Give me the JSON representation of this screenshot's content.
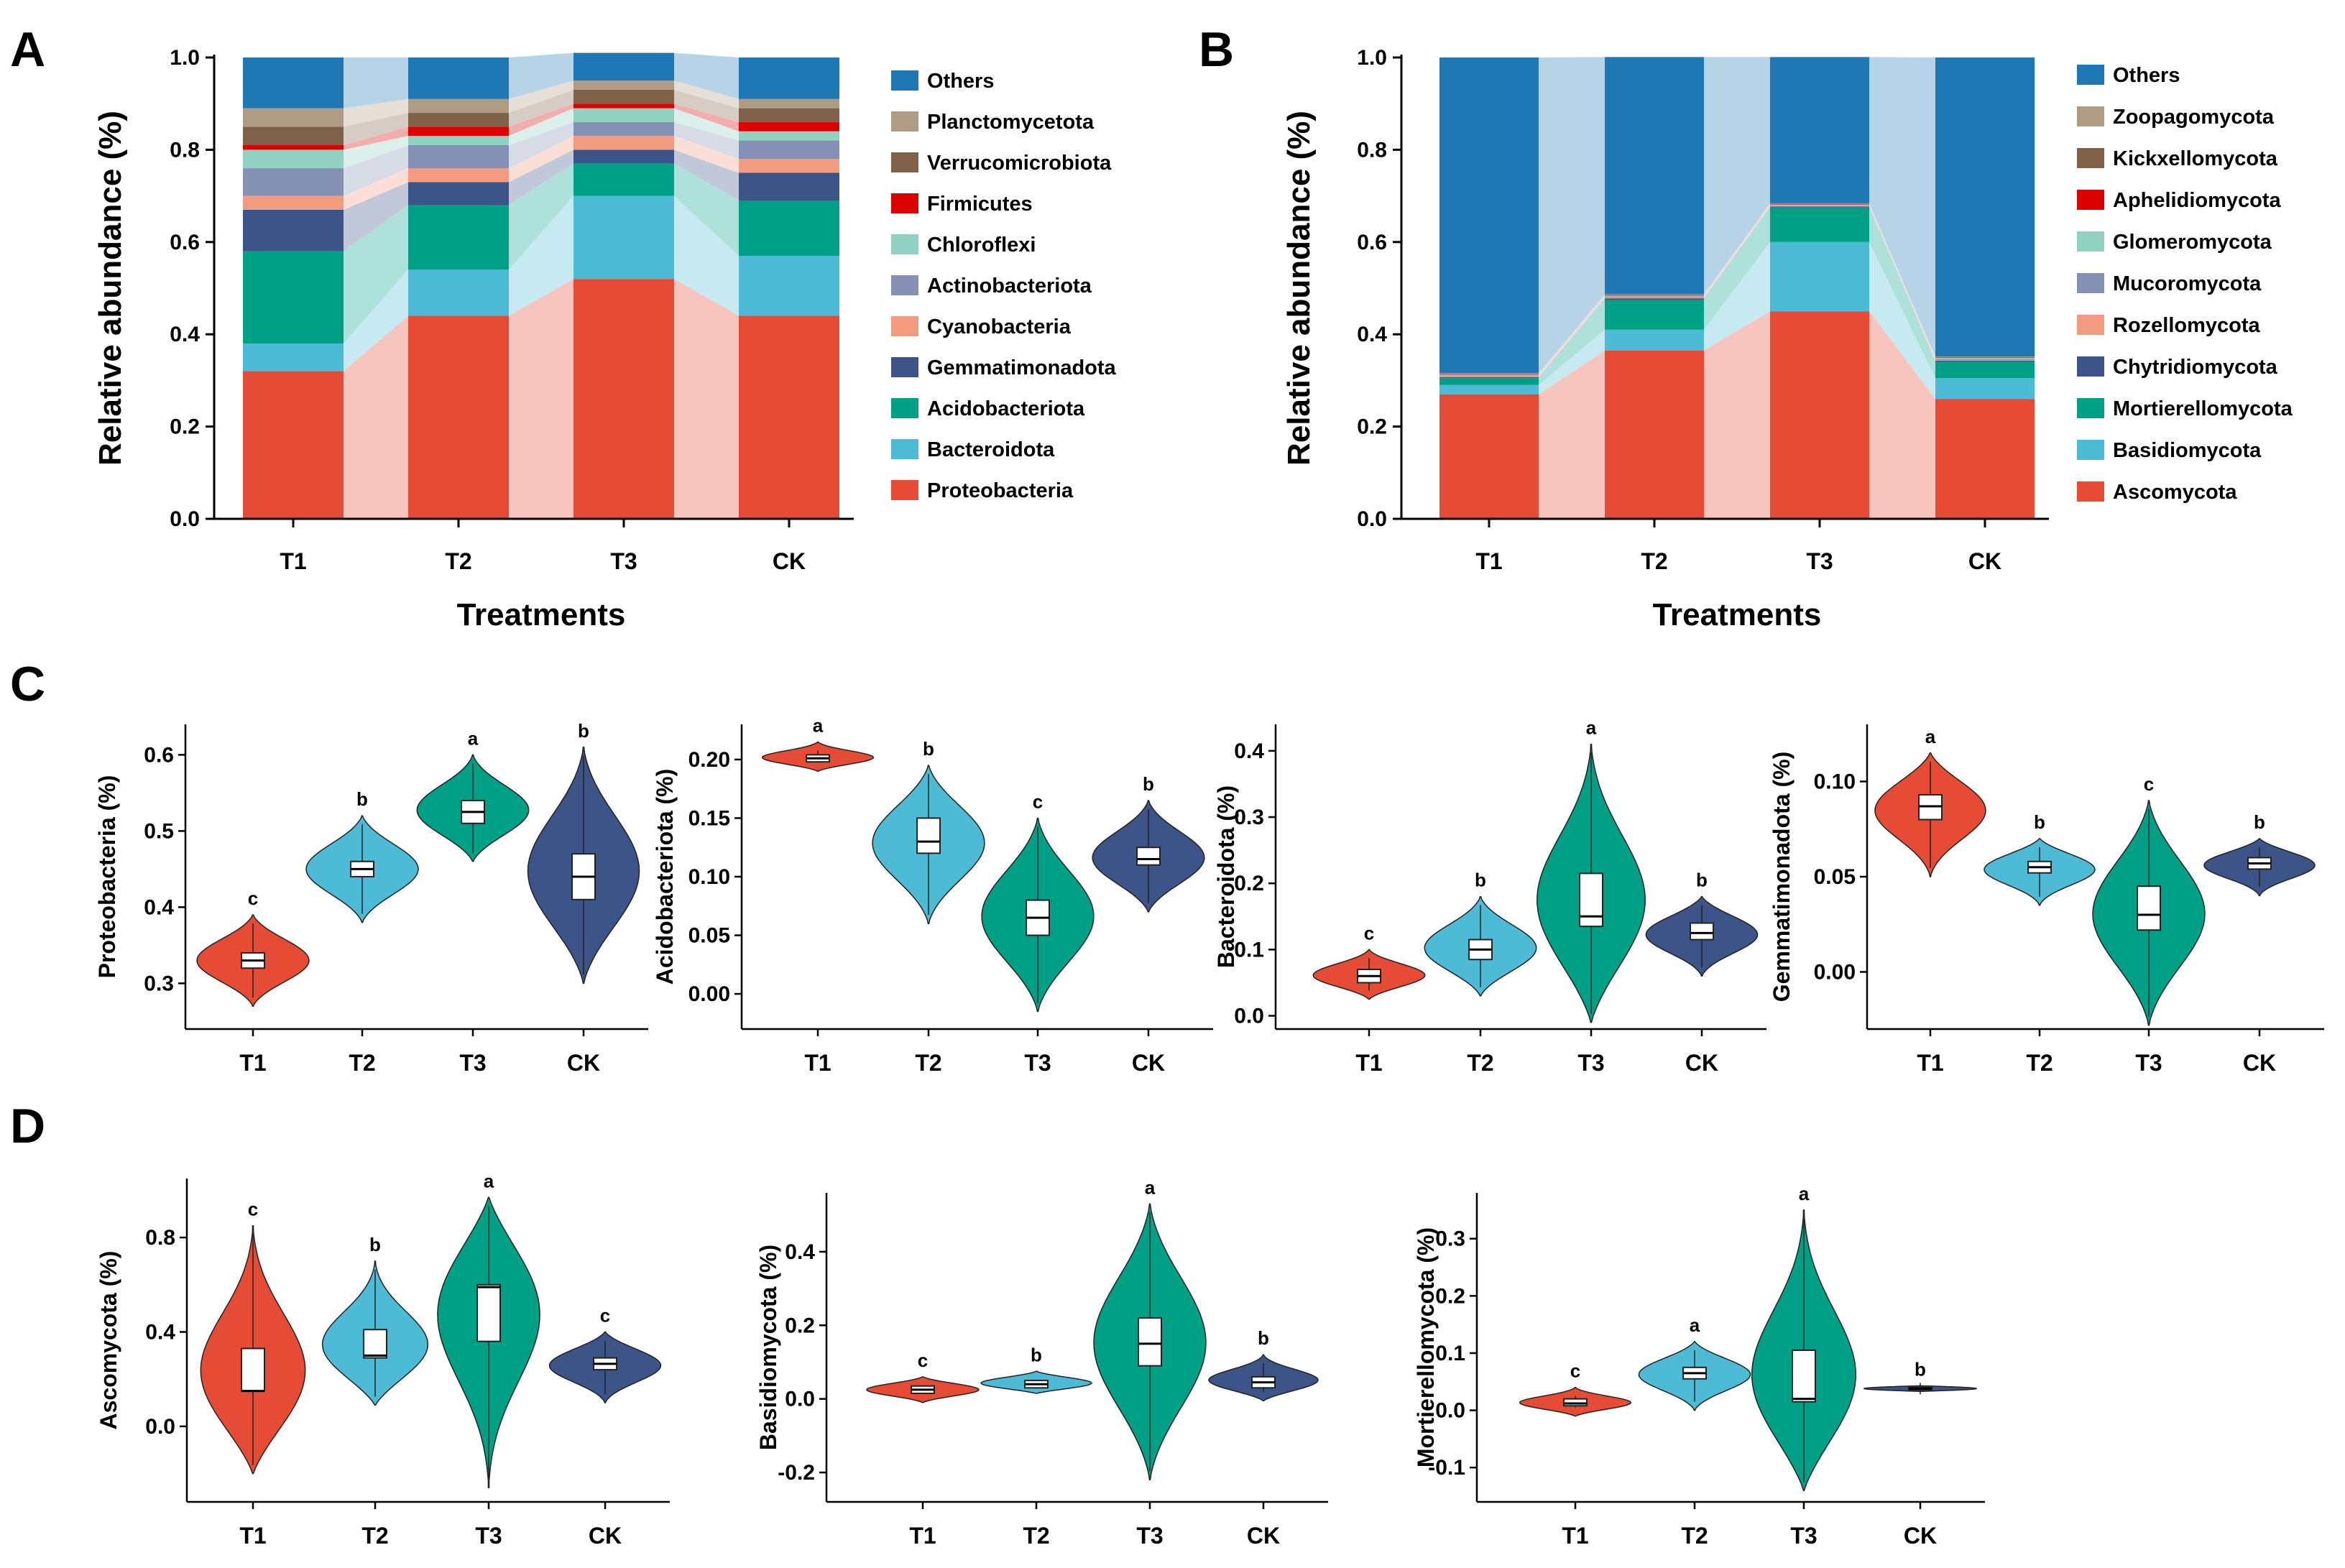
{
  "panels": {
    "a": "A",
    "b": "B",
    "c": "C",
    "d": "D"
  },
  "chart_data": [
    {
      "id": "A",
      "type": "bar",
      "stacked": true,
      "title": "",
      "xlabel": "Treatments",
      "ylabel": "Relative abundance (%)",
      "ylim": [
        0,
        1
      ],
      "yticks": [
        "0.0",
        "0.2",
        "0.4",
        "0.6",
        "0.8",
        "1.0"
      ],
      "categories": [
        "T1",
        "T2",
        "T3",
        "CK"
      ],
      "legend_position": "right",
      "series": [
        {
          "name": "Proteobacteria",
          "color": "#E64B35",
          "values": [
            0.32,
            0.44,
            0.52,
            0.44
          ]
        },
        {
          "name": "Bacteroidota",
          "color": "#4DBBD5",
          "values": [
            0.06,
            0.1,
            0.18,
            0.13
          ]
        },
        {
          "name": "Acidobacteriota",
          "color": "#00A087",
          "values": [
            0.2,
            0.14,
            0.07,
            0.12
          ]
        },
        {
          "name": "Gemmatimonadota",
          "color": "#3C5488",
          "values": [
            0.09,
            0.05,
            0.03,
            0.06
          ]
        },
        {
          "name": "Cyanobacteria",
          "color": "#F39B7F",
          "values": [
            0.03,
            0.03,
            0.03,
            0.03
          ]
        },
        {
          "name": "Actinobacteriota",
          "color": "#8491B4",
          "values": [
            0.06,
            0.05,
            0.03,
            0.04
          ]
        },
        {
          "name": "Chloroflexi",
          "color": "#91D1C2",
          "values": [
            0.04,
            0.02,
            0.03,
            0.02
          ]
        },
        {
          "name": "Firmicutes",
          "color": "#DC0000",
          "values": [
            0.01,
            0.02,
            0.01,
            0.02
          ]
        },
        {
          "name": "Verrucomicrobiota",
          "color": "#7E6148",
          "values": [
            0.04,
            0.03,
            0.03,
            0.03
          ]
        },
        {
          "name": "Planctomycetota",
          "color": "#B09C85",
          "values": [
            0.04,
            0.03,
            0.02,
            0.02
          ]
        },
        {
          "name": "Others",
          "color": "#1F77B4",
          "values": [
            0.11,
            0.09,
            0.06,
            0.09
          ]
        }
      ]
    },
    {
      "id": "B",
      "type": "bar",
      "stacked": true,
      "title": "",
      "xlabel": "Treatments",
      "ylabel": "Relative abundance (%)",
      "ylim": [
        0,
        1
      ],
      "yticks": [
        "0.0",
        "0.2",
        "0.4",
        "0.6",
        "0.8",
        "1.0"
      ],
      "categories": [
        "T1",
        "T2",
        "T3",
        "CK"
      ],
      "legend_position": "right",
      "series": [
        {
          "name": "Ascomycota",
          "color": "#E64B35",
          "values": [
            0.27,
            0.365,
            0.45,
            0.26
          ]
        },
        {
          "name": "Basidiomycota",
          "color": "#4DBBD5",
          "values": [
            0.02,
            0.045,
            0.15,
            0.045
          ]
        },
        {
          "name": "Mortierellomycota",
          "color": "#00A087",
          "values": [
            0.015,
            0.065,
            0.075,
            0.035
          ]
        },
        {
          "name": "Chytridiomycota",
          "color": "#3C5488",
          "values": [
            0.002,
            0.003,
            0.002,
            0.003
          ]
        },
        {
          "name": "Rozellomycota",
          "color": "#F39B7F",
          "values": [
            0.002,
            0.002,
            0.001,
            0.002
          ]
        },
        {
          "name": "Mucoromycota",
          "color": "#8491B4",
          "values": [
            0.002,
            0.002,
            0.001,
            0.002
          ]
        },
        {
          "name": "Glomeromycota",
          "color": "#91D1C2",
          "values": [
            0.002,
            0.002,
            0.002,
            0.002
          ]
        },
        {
          "name": "Aphelidiomycota",
          "color": "#DC0000",
          "values": [
            0.001,
            0.001,
            0.001,
            0.001
          ]
        },
        {
          "name": "Kickxellomycota",
          "color": "#7E6148",
          "values": [
            0.001,
            0.001,
            0.001,
            0.001
          ]
        },
        {
          "name": "Zoopagomycota",
          "color": "#B09C85",
          "values": [
            0.001,
            0.001,
            0.001,
            0.001
          ]
        },
        {
          "name": "Others",
          "color": "#1F77B4",
          "values": [
            0.684,
            0.514,
            0.317,
            0.648
          ]
        }
      ]
    },
    {
      "id": "C1",
      "type": "violin",
      "ylabel": "Proteobacteria (%)",
      "ylim": [
        0.24,
        0.64
      ],
      "yticks": [
        "0.3",
        "0.4",
        "0.5",
        "0.6"
      ],
      "categories": [
        "T1",
        "T2",
        "T3",
        "CK"
      ],
      "groups": [
        {
          "name": "T1",
          "color": "#E64B35",
          "min": 0.27,
          "max": 0.39,
          "q1": 0.32,
          "median": 0.33,
          "q3": 0.34,
          "sig": "c"
        },
        {
          "name": "T2",
          "color": "#4DBBD5",
          "min": 0.38,
          "max": 0.52,
          "q1": 0.44,
          "median": 0.45,
          "q3": 0.46,
          "sig": "b"
        },
        {
          "name": "T3",
          "color": "#00A087",
          "min": 0.46,
          "max": 0.6,
          "q1": 0.51,
          "median": 0.525,
          "q3": 0.54,
          "sig": "a"
        },
        {
          "name": "CK",
          "color": "#3C5488",
          "min": 0.3,
          "max": 0.61,
          "q1": 0.41,
          "median": 0.44,
          "q3": 0.47,
          "sig": "b"
        }
      ]
    },
    {
      "id": "C2",
      "type": "violin",
      "ylabel": "Acidobacteriota (%)",
      "ylim": [
        -0.03,
        0.23
      ],
      "yticks": [
        "0.00",
        "0.05",
        "0.10",
        "0.15",
        "0.20"
      ],
      "categories": [
        "T1",
        "T2",
        "T3",
        "CK"
      ],
      "groups": [
        {
          "name": "T1",
          "color": "#E64B35",
          "min": 0.19,
          "max": 0.215,
          "q1": 0.198,
          "median": 0.201,
          "q3": 0.204,
          "sig": "a"
        },
        {
          "name": "T2",
          "color": "#4DBBD5",
          "min": 0.06,
          "max": 0.195,
          "q1": 0.12,
          "median": 0.13,
          "q3": 0.15,
          "sig": "b"
        },
        {
          "name": "T3",
          "color": "#00A087",
          "min": -0.015,
          "max": 0.15,
          "q1": 0.05,
          "median": 0.065,
          "q3": 0.08,
          "sig": "c"
        },
        {
          "name": "CK",
          "color": "#3C5488",
          "min": 0.07,
          "max": 0.165,
          "q1": 0.11,
          "median": 0.115,
          "q3": 0.125,
          "sig": "b"
        }
      ]
    },
    {
      "id": "C3",
      "type": "violin",
      "ylabel": "Bacteroidota (%)",
      "ylim": [
        -0.02,
        0.44
      ],
      "yticks": [
        "0.0",
        "0.1",
        "0.2",
        "0.3",
        "0.4"
      ],
      "categories": [
        "T1",
        "T2",
        "T3",
        "CK"
      ],
      "groups": [
        {
          "name": "T1",
          "color": "#E64B35",
          "min": 0.025,
          "max": 0.1,
          "q1": 0.05,
          "median": 0.06,
          "q3": 0.07,
          "sig": "c"
        },
        {
          "name": "T2",
          "color": "#4DBBD5",
          "min": 0.03,
          "max": 0.18,
          "q1": 0.085,
          "median": 0.1,
          "q3": 0.115,
          "sig": "b"
        },
        {
          "name": "T3",
          "color": "#00A087",
          "min": -0.01,
          "max": 0.41,
          "q1": 0.135,
          "median": 0.15,
          "q3": 0.215,
          "sig": "a"
        },
        {
          "name": "CK",
          "color": "#3C5488",
          "min": 0.06,
          "max": 0.18,
          "q1": 0.115,
          "median": 0.125,
          "q3": 0.14,
          "sig": "b"
        }
      ]
    },
    {
      "id": "C4",
      "type": "violin",
      "ylabel": "Gemmatimonadota (%)",
      "ylim": [
        -0.03,
        0.13
      ],
      "yticks": [
        "0.00",
        "0.05",
        "0.10"
      ],
      "categories": [
        "T1",
        "T2",
        "T3",
        "CK"
      ],
      "groups": [
        {
          "name": "T1",
          "color": "#E64B35",
          "min": 0.05,
          "max": 0.115,
          "q1": 0.08,
          "median": 0.087,
          "q3": 0.093,
          "sig": "a"
        },
        {
          "name": "T2",
          "color": "#4DBBD5",
          "min": 0.035,
          "max": 0.07,
          "q1": 0.052,
          "median": 0.055,
          "q3": 0.058,
          "sig": "b"
        },
        {
          "name": "T3",
          "color": "#00A087",
          "min": -0.028,
          "max": 0.09,
          "q1": 0.022,
          "median": 0.03,
          "q3": 0.045,
          "sig": "c"
        },
        {
          "name": "CK",
          "color": "#3C5488",
          "min": 0.04,
          "max": 0.07,
          "q1": 0.054,
          "median": 0.057,
          "q3": 0.06,
          "sig": "b"
        }
      ]
    },
    {
      "id": "D1",
      "type": "violin",
      "ylabel": "Ascomycota (%)",
      "ylim": [
        -0.32,
        1.05
      ],
      "yticks": [
        "0.0",
        "0.4",
        "0.8"
      ],
      "categories": [
        "T1",
        "T2",
        "T3",
        "CK"
      ],
      "groups": [
        {
          "name": "T1",
          "color": "#E64B35",
          "min": -0.2,
          "max": 0.85,
          "q1": 0.15,
          "median": 0.15,
          "q3": 0.33,
          "sig": "c"
        },
        {
          "name": "T2",
          "color": "#4DBBD5",
          "min": 0.09,
          "max": 0.7,
          "q1": 0.29,
          "median": 0.3,
          "q3": 0.41,
          "sig": "b"
        },
        {
          "name": "T3",
          "color": "#00A087",
          "min": -0.26,
          "max": 0.97,
          "q1": 0.36,
          "median": 0.59,
          "q3": 0.6,
          "sig": "a"
        },
        {
          "name": "CK",
          "color": "#3C5488",
          "min": 0.1,
          "max": 0.4,
          "q1": 0.24,
          "median": 0.265,
          "q3": 0.29,
          "sig": "c"
        }
      ]
    },
    {
      "id": "D2",
      "type": "violin",
      "ylabel": "Basidiomycota (%)",
      "ylim": [
        -0.28,
        0.56
      ],
      "yticks": [
        "-0.2",
        "0.0",
        "0.2",
        "0.4"
      ],
      "categories": [
        "T1",
        "T2",
        "T3",
        "CK"
      ],
      "groups": [
        {
          "name": "T1",
          "color": "#E64B35",
          "min": -0.01,
          "max": 0.06,
          "q1": 0.015,
          "median": 0.025,
          "q3": 0.035,
          "sig": "c"
        },
        {
          "name": "T2",
          "color": "#4DBBD5",
          "min": 0.015,
          "max": 0.075,
          "q1": 0.03,
          "median": 0.04,
          "q3": 0.05,
          "sig": "b"
        },
        {
          "name": "T3",
          "color": "#00A087",
          "min": -0.22,
          "max": 0.53,
          "q1": 0.09,
          "median": 0.15,
          "q3": 0.22,
          "sig": "a"
        },
        {
          "name": "CK",
          "color": "#3C5488",
          "min": -0.005,
          "max": 0.12,
          "q1": 0.03,
          "median": 0.045,
          "q3": 0.06,
          "sig": "b"
        }
      ]
    },
    {
      "id": "D3",
      "type": "violin",
      "ylabel": "Mortierellomycota (%)",
      "ylim": [
        -0.16,
        0.38
      ],
      "yticks": [
        "-0.1",
        "0.0",
        "0.1",
        "0.2",
        "0.3"
      ],
      "categories": [
        "T1",
        "T2",
        "T3",
        "CK"
      ],
      "groups": [
        {
          "name": "T1",
          "color": "#E64B35",
          "min": -0.01,
          "max": 0.04,
          "q1": 0.008,
          "median": 0.012,
          "q3": 0.02,
          "sig": "c"
        },
        {
          "name": "T2",
          "color": "#4DBBD5",
          "min": 0.0,
          "max": 0.12,
          "q1": 0.055,
          "median": 0.065,
          "q3": 0.075,
          "sig": "a"
        },
        {
          "name": "T3",
          "color": "#00A087",
          "min": -0.14,
          "max": 0.35,
          "q1": 0.015,
          "median": 0.02,
          "q3": 0.105,
          "sig": "a"
        },
        {
          "name": "CK",
          "color": "#3C5488",
          "min": 0.033,
          "max": 0.043,
          "q1": 0.036,
          "median": 0.038,
          "q3": 0.04,
          "sig": "b"
        }
      ]
    }
  ]
}
